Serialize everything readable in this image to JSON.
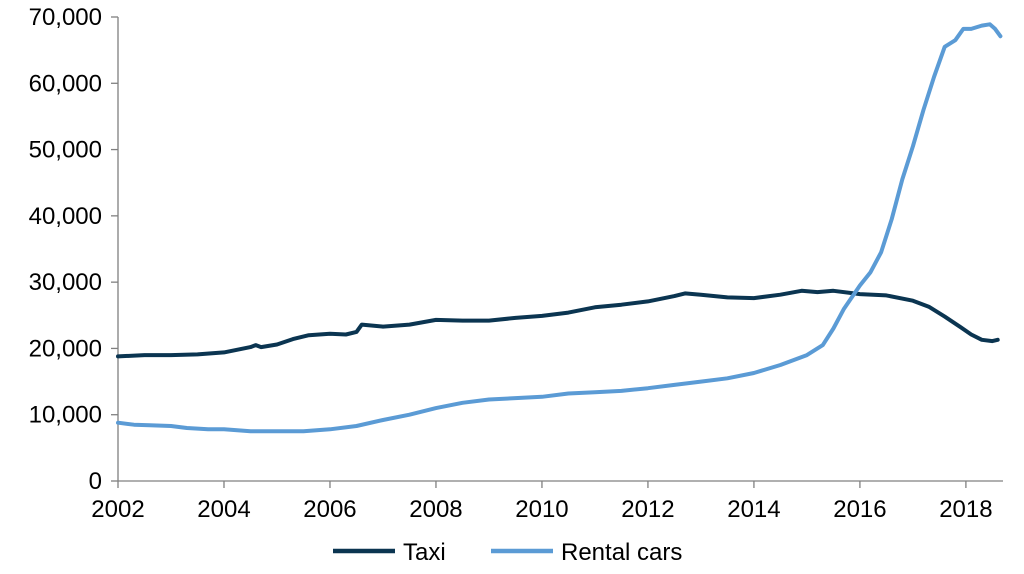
{
  "chart_data": {
    "type": "line",
    "title": "",
    "xlabel": "",
    "ylabel": "",
    "xlim": [
      2002,
      2018.7
    ],
    "ylim": [
      0,
      70000
    ],
    "x_ticks": [
      "2002",
      "2004",
      "2006",
      "2008",
      "2010",
      "2012",
      "2014",
      "2016",
      "2018"
    ],
    "y_ticks": [
      "0",
      "10,000",
      "20,000",
      "30,000",
      "40,000",
      "50,000",
      "60,000",
      "70,000"
    ],
    "grid": false,
    "legend_position": "bottom",
    "series": [
      {
        "name": "Taxi",
        "color": "#0b3551",
        "points": [
          [
            2002.0,
            18800
          ],
          [
            2002.5,
            19000
          ],
          [
            2003.0,
            19000
          ],
          [
            2003.5,
            19100
          ],
          [
            2004.0,
            19400
          ],
          [
            2004.5,
            20200
          ],
          [
            2004.6,
            20500
          ],
          [
            2004.7,
            20200
          ],
          [
            2005.0,
            20600
          ],
          [
            2005.3,
            21400
          ],
          [
            2005.6,
            22000
          ],
          [
            2006.0,
            22200
          ],
          [
            2006.3,
            22100
          ],
          [
            2006.5,
            22500
          ],
          [
            2006.6,
            23600
          ],
          [
            2007.0,
            23300
          ],
          [
            2007.5,
            23600
          ],
          [
            2008.0,
            24300
          ],
          [
            2008.5,
            24200
          ],
          [
            2009.0,
            24200
          ],
          [
            2009.5,
            24600
          ],
          [
            2010.0,
            24900
          ],
          [
            2010.5,
            25400
          ],
          [
            2011.0,
            26200
          ],
          [
            2011.5,
            26600
          ],
          [
            2012.0,
            27100
          ],
          [
            2012.5,
            27900
          ],
          [
            2012.7,
            28300
          ],
          [
            2013.0,
            28100
          ],
          [
            2013.5,
            27700
          ],
          [
            2014.0,
            27600
          ],
          [
            2014.5,
            28100
          ],
          [
            2014.9,
            28700
          ],
          [
            2015.2,
            28500
          ],
          [
            2015.5,
            28700
          ],
          [
            2016.0,
            28200
          ],
          [
            2016.5,
            28000
          ],
          [
            2017.0,
            27200
          ],
          [
            2017.3,
            26300
          ],
          [
            2017.6,
            24800
          ],
          [
            2017.9,
            23200
          ],
          [
            2018.1,
            22100
          ],
          [
            2018.3,
            21300
          ],
          [
            2018.5,
            21100
          ],
          [
            2018.6,
            21300
          ]
        ]
      },
      {
        "name": "Rental cars",
        "color": "#5b9bd5",
        "points": [
          [
            2002.0,
            8800
          ],
          [
            2002.3,
            8500
          ],
          [
            2002.6,
            8400
          ],
          [
            2003.0,
            8300
          ],
          [
            2003.3,
            8000
          ],
          [
            2003.7,
            7800
          ],
          [
            2004.0,
            7800
          ],
          [
            2004.5,
            7500
          ],
          [
            2005.0,
            7500
          ],
          [
            2005.5,
            7500
          ],
          [
            2006.0,
            7800
          ],
          [
            2006.5,
            8300
          ],
          [
            2007.0,
            9200
          ],
          [
            2007.5,
            10000
          ],
          [
            2008.0,
            11000
          ],
          [
            2008.5,
            11800
          ],
          [
            2009.0,
            12300
          ],
          [
            2009.5,
            12500
          ],
          [
            2010.0,
            12700
          ],
          [
            2010.5,
            13200
          ],
          [
            2011.0,
            13400
          ],
          [
            2011.5,
            13600
          ],
          [
            2012.0,
            14000
          ],
          [
            2012.5,
            14500
          ],
          [
            2013.0,
            15000
          ],
          [
            2013.5,
            15500
          ],
          [
            2014.0,
            16300
          ],
          [
            2014.5,
            17500
          ],
          [
            2015.0,
            19000
          ],
          [
            2015.3,
            20500
          ],
          [
            2015.5,
            23000
          ],
          [
            2015.7,
            26000
          ],
          [
            2016.0,
            29500
          ],
          [
            2016.2,
            31500
          ],
          [
            2016.4,
            34500
          ],
          [
            2016.6,
            39500
          ],
          [
            2016.8,
            45500
          ],
          [
            2017.0,
            50500
          ],
          [
            2017.2,
            56000
          ],
          [
            2017.4,
            61000
          ],
          [
            2017.6,
            65500
          ],
          [
            2017.8,
            66500
          ],
          [
            2017.95,
            68200
          ],
          [
            2018.1,
            68200
          ],
          [
            2018.3,
            68700
          ],
          [
            2018.45,
            68900
          ],
          [
            2018.55,
            68200
          ],
          [
            2018.65,
            67100
          ]
        ]
      }
    ]
  }
}
